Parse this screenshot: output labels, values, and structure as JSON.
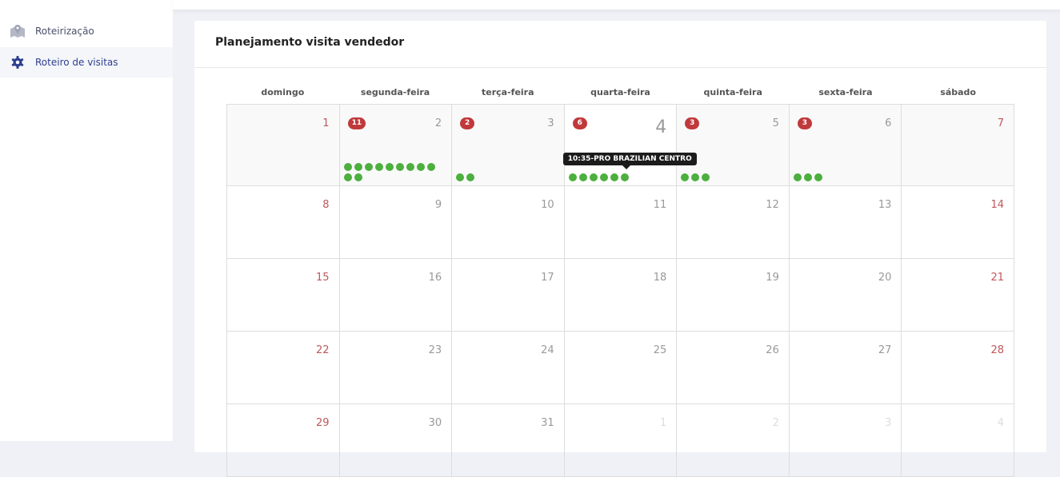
{
  "sidebar": {
    "items": [
      {
        "label": "Roteirização",
        "icon": "map-icon",
        "active": false
      },
      {
        "label": "Roteiro de visitas",
        "icon": "gear-icon",
        "active": true
      }
    ]
  },
  "card": {
    "title": "Planejamento visita vendedor"
  },
  "calendar": {
    "weekdays": [
      "domingo",
      "segunda-feira",
      "terça-feira",
      "quarta-feira",
      "quinta-feira",
      "sexta-feira",
      "sábado"
    ],
    "today": 4,
    "tooltip": "10:35-PRO BRAZILIAN CENTRO",
    "weeks": [
      [
        {
          "day": "1",
          "weekend": true
        },
        {
          "day": "2",
          "badge": "11",
          "visits": 11
        },
        {
          "day": "3",
          "badge": "2",
          "visits": 2
        },
        {
          "day": "4",
          "badge": "6",
          "visits": 6,
          "today": true
        },
        {
          "day": "5",
          "badge": "3",
          "visits": 3
        },
        {
          "day": "6",
          "badge": "3",
          "visits": 3
        },
        {
          "day": "7",
          "weekend": true
        }
      ],
      [
        {
          "day": "8",
          "weekend": true
        },
        {
          "day": "9"
        },
        {
          "day": "10"
        },
        {
          "day": "11"
        },
        {
          "day": "12"
        },
        {
          "day": "13"
        },
        {
          "day": "14",
          "weekend": true
        }
      ],
      [
        {
          "day": "15",
          "weekend": true
        },
        {
          "day": "16"
        },
        {
          "day": "17"
        },
        {
          "day": "18"
        },
        {
          "day": "19"
        },
        {
          "day": "20"
        },
        {
          "day": "21",
          "weekend": true
        }
      ],
      [
        {
          "day": "22",
          "weekend": true
        },
        {
          "day": "23"
        },
        {
          "day": "24"
        },
        {
          "day": "25"
        },
        {
          "day": "26"
        },
        {
          "day": "27"
        },
        {
          "day": "28",
          "weekend": true
        }
      ],
      [
        {
          "day": "29",
          "weekend": true
        },
        {
          "day": "30"
        },
        {
          "day": "31"
        },
        {
          "day": "1",
          "other": true
        },
        {
          "day": "2",
          "other": true
        },
        {
          "day": "3",
          "other": true
        },
        {
          "day": "4",
          "other": true
        }
      ]
    ]
  },
  "colors": {
    "accent": "#2d3f8f",
    "badge": "#c0393b",
    "dot": "#4caf3e",
    "weekend": "#c0575a"
  }
}
